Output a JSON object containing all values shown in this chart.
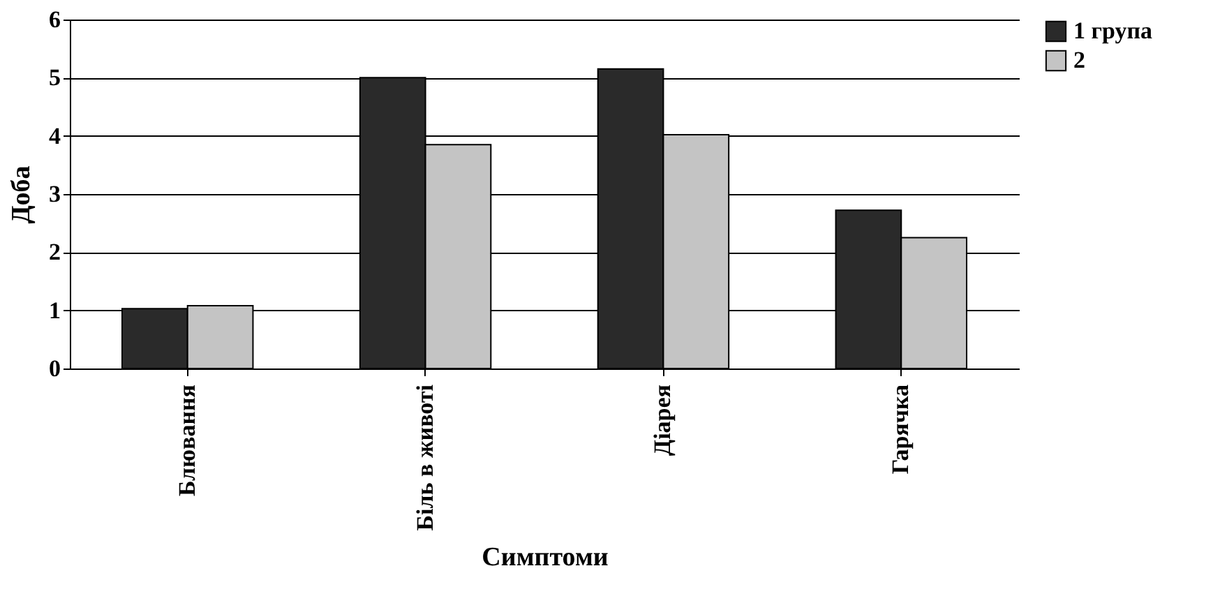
{
  "chart_data": {
    "type": "bar",
    "xlabel": "Симптоми",
    "ylabel": "Доба",
    "categories": [
      "Блювання",
      "Біль в животі",
      "Діарея",
      "Гарячка"
    ],
    "series": [
      {
        "name": "1 група",
        "color": "#2a2a2a",
        "values": [
          1.03,
          5.0,
          5.15,
          2.72
        ]
      },
      {
        "name": "2",
        "color": "#c4c4c4",
        "values": [
          1.08,
          3.85,
          4.02,
          2.25
        ]
      }
    ],
    "ylim": [
      0,
      6
    ],
    "yticks": [
      0,
      1,
      2,
      3,
      4,
      5,
      6
    ],
    "grid": "y",
    "legend": "right"
  }
}
